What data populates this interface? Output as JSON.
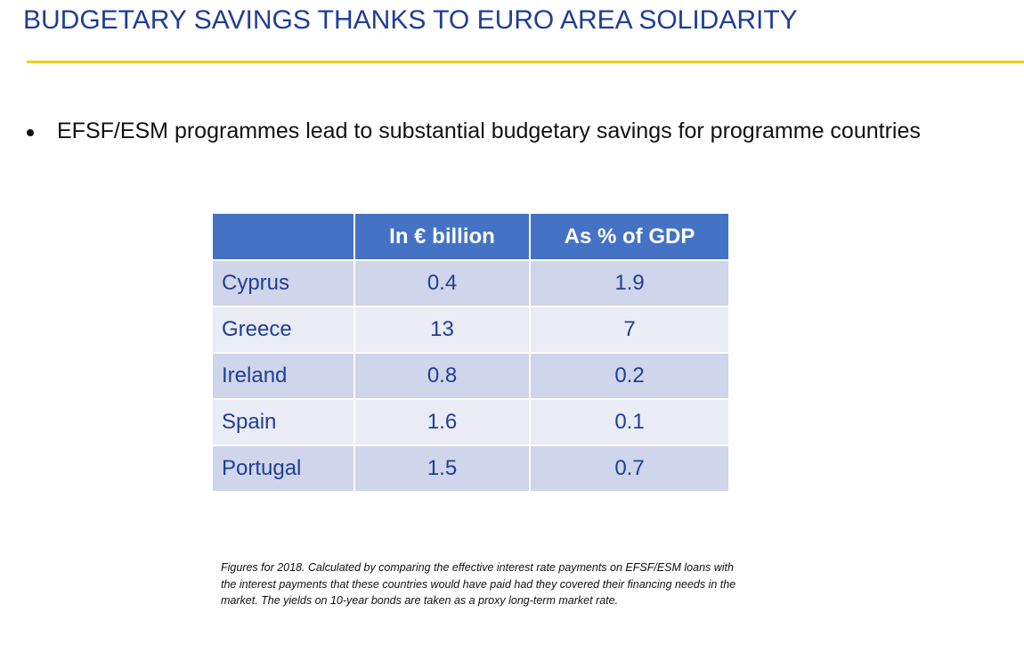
{
  "slide": {
    "title": "BUDGETARY SAVINGS THANKS TO EURO AREA SOLIDARITY",
    "accent_color": "#f2cf1a",
    "title_color": "#1f3f93"
  },
  "bullet": {
    "text": "EFSF/ESM programmes lead to substantial budgetary savings for programme countries"
  },
  "table": {
    "header_color": "#4472c4",
    "columns": [
      "",
      "In € billion",
      "As % of GDP"
    ],
    "rows": [
      {
        "country": "Cyprus",
        "billion": "0.4",
        "gdp": "1.9"
      },
      {
        "country": "Greece",
        "billion": "13",
        "gdp": "7"
      },
      {
        "country": "Ireland",
        "billion": "0.8",
        "gdp": "0.2"
      },
      {
        "country": "Spain",
        "billion": "1.6",
        "gdp": "0.1"
      },
      {
        "country": "Portugal",
        "billion": "1.5",
        "gdp": "0.7"
      }
    ]
  },
  "footnote": {
    "text": "Figures for 2018. Calculated by comparing the effective interest rate payments on EFSF/ESM loans with the interest payments that these countries would have paid had they covered their financing needs in the market. The yields on 10-year bonds are taken as a proxy long-term market rate."
  }
}
